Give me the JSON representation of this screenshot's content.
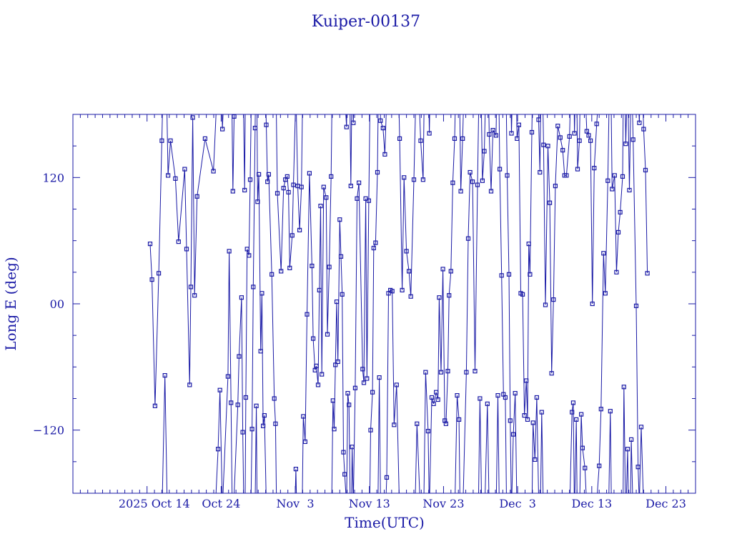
{
  "chart_data": {
    "type": "line",
    "title": "Kuiper-00137",
    "xlabel": "Time(UTC)",
    "ylabel": "Long E (deg)",
    "color": "#1a1aa6",
    "xlim": [
      "2025-10-04",
      "2025-12-27"
    ],
    "ylim": [
      -180,
      180
    ],
    "x_ticks": [
      {
        "date": "2025-10-14",
        "label": "2025 Oct 14"
      },
      {
        "date": "2025-10-24",
        "label": "Oct 24"
      },
      {
        "date": "2025-11-03",
        "label": "Nov  3"
      },
      {
        "date": "2025-11-13",
        "label": "Nov 13"
      },
      {
        "date": "2025-11-23",
        "label": "Nov 23"
      },
      {
        "date": "2025-12-03",
        "label": "Dec  3"
      },
      {
        "date": "2025-12-13",
        "label": "Dec 13"
      },
      {
        "date": "2025-12-23",
        "label": "Dec 23"
      }
    ],
    "y_ticks": [
      {
        "value": 120,
        "label": "120"
      },
      {
        "value": 0,
        "label": "00"
      },
      {
        "value": -120,
        "label": "−120"
      }
    ],
    "series": [
      {
        "values": [
          [
            "2025-10-14T10:00",
            57
          ],
          [
            "2025-10-14T16:00",
            23
          ],
          [
            "2025-10-15T02:00",
            -97
          ],
          [
            "2025-10-15T14:00",
            29
          ],
          [
            "2025-10-16T00:00",
            155
          ],
          [
            "2025-10-16T10:00",
            -68
          ],
          [
            "2025-10-16T20:00",
            122
          ],
          [
            "2025-10-17T04:00",
            155
          ],
          [
            "2025-10-17T20:00",
            119
          ],
          [
            "2025-10-18T06:00",
            59
          ],
          [
            "2025-10-19T02:00",
            128
          ],
          [
            "2025-10-19T08:00",
            52
          ],
          [
            "2025-10-19T18:00",
            -77
          ],
          [
            "2025-10-19T22:00",
            16
          ],
          [
            "2025-10-20T04:00",
            177
          ],
          [
            "2025-10-20T10:00",
            8
          ],
          [
            "2025-10-20T18:00",
            102
          ],
          [
            "2025-10-21T20:00",
            157
          ],
          [
            "2025-10-22T23:00",
            126
          ],
          [
            "2025-10-23T14:00",
            -138
          ],
          [
            "2025-10-23T20:00",
            -82
          ],
          [
            "2025-10-24T04:00",
            166
          ],
          [
            "2025-10-24T22:00",
            -69
          ],
          [
            "2025-10-25T02:00",
            50
          ],
          [
            "2025-10-25T08:00",
            -94
          ],
          [
            "2025-10-25T14:00",
            107
          ],
          [
            "2025-10-25T18:00",
            178
          ],
          [
            "2025-10-26T06:00",
            -96
          ],
          [
            "2025-10-26T10:00",
            -50
          ],
          [
            "2025-10-26T18:00",
            6
          ],
          [
            "2025-10-26T22:00",
            -122
          ],
          [
            "2025-10-27T04:00",
            108
          ],
          [
            "2025-10-27T08:00",
            -89
          ],
          [
            "2025-10-27T12:00",
            52
          ],
          [
            "2025-10-27T18:00",
            46
          ],
          [
            "2025-10-27T22:00",
            118
          ],
          [
            "2025-10-28T04:00",
            -119
          ],
          [
            "2025-10-28T08:00",
            16
          ],
          [
            "2025-10-28T14:00",
            167
          ],
          [
            "2025-10-28T18:00",
            -97
          ],
          [
            "2025-10-28T22:00",
            97
          ],
          [
            "2025-10-29T02:00",
            123
          ],
          [
            "2025-10-29T08:00",
            -45
          ],
          [
            "2025-10-29T12:00",
            10
          ],
          [
            "2025-10-29T16:00",
            -116
          ],
          [
            "2025-10-29T20:00",
            -106
          ],
          [
            "2025-10-30T02:00",
            170
          ],
          [
            "2025-10-30T06:00",
            116
          ],
          [
            "2025-10-30T10:00",
            123
          ],
          [
            "2025-10-30T20:00",
            28
          ],
          [
            "2025-10-31T04:00",
            -90
          ],
          [
            "2025-10-31T08:00",
            -114
          ],
          [
            "2025-10-31T14:00",
            105
          ],
          [
            "2025-11-01T02:00",
            31
          ],
          [
            "2025-11-01T10:00",
            110
          ],
          [
            "2025-11-01T16:00",
            118
          ],
          [
            "2025-11-01T22:00",
            121
          ],
          [
            "2025-11-02T02:00",
            106
          ],
          [
            "2025-11-02T06:00",
            34
          ],
          [
            "2025-11-02T14:00",
            65
          ],
          [
            "2025-11-02T18:00",
            113
          ],
          [
            "2025-11-03T02:00",
            -157
          ],
          [
            "2025-11-03T08:00",
            112
          ],
          [
            "2025-11-03T14:00",
            70
          ],
          [
            "2025-11-03T20:00",
            111
          ],
          [
            "2025-11-04T02:00",
            -107
          ],
          [
            "2025-11-04T08:00",
            -131
          ],
          [
            "2025-11-04T14:00",
            -10
          ],
          [
            "2025-11-04T22:00",
            124
          ],
          [
            "2025-11-05T06:00",
            36
          ],
          [
            "2025-11-05T10:00",
            -33
          ],
          [
            "2025-11-05T16:00",
            -63
          ],
          [
            "2025-11-05T20:00",
            -59
          ],
          [
            "2025-11-06T02:00",
            -77
          ],
          [
            "2025-11-06T06:00",
            13
          ],
          [
            "2025-11-06T10:00",
            93
          ],
          [
            "2025-11-06T14:00",
            -67
          ],
          [
            "2025-11-06T20:00",
            111
          ],
          [
            "2025-11-07T04:00",
            101
          ],
          [
            "2025-11-07T08:00",
            -29
          ],
          [
            "2025-11-07T14:00",
            35
          ],
          [
            "2025-11-07T20:00",
            121
          ],
          [
            "2025-11-08T02:00",
            -92
          ],
          [
            "2025-11-08T06:00",
            -119
          ],
          [
            "2025-11-08T10:00",
            -58
          ],
          [
            "2025-11-08T14:00",
            2
          ],
          [
            "2025-11-08T18:00",
            -55
          ],
          [
            "2025-11-09T00:00",
            80
          ],
          [
            "2025-11-09T04:00",
            45
          ],
          [
            "2025-11-09T08:00",
            9
          ],
          [
            "2025-11-09T12:00",
            -141
          ],
          [
            "2025-11-09T16:00",
            -162
          ],
          [
            "2025-11-09T22:00",
            168
          ],
          [
            "2025-11-10T02:00",
            -85
          ],
          [
            "2025-11-10T06:00",
            -96
          ],
          [
            "2025-11-10T12:00",
            112
          ],
          [
            "2025-11-10T16:00",
            -136
          ],
          [
            "2025-11-10T20:00",
            172
          ],
          [
            "2025-11-11T02:00",
            -80
          ],
          [
            "2025-11-11T08:00",
            100
          ],
          [
            "2025-11-11T14:00",
            115
          ],
          [
            "2025-11-12T02:00",
            -62
          ],
          [
            "2025-11-12T06:00",
            -75
          ],
          [
            "2025-11-12T12:00",
            100
          ],
          [
            "2025-11-12T16:00",
            -71
          ],
          [
            "2025-11-12T22:00",
            98
          ],
          [
            "2025-11-13T04:00",
            -120
          ],
          [
            "2025-11-13T10:00",
            -84
          ],
          [
            "2025-11-13T14:00",
            53
          ],
          [
            "2025-11-13T20:00",
            58
          ],
          [
            "2025-11-14T02:00",
            125
          ],
          [
            "2025-11-14T08:00",
            -70
          ],
          [
            "2025-11-14T12:00",
            174
          ],
          [
            "2025-11-14T20:00",
            167
          ],
          [
            "2025-11-15T02:00",
            142
          ],
          [
            "2025-11-15T08:00",
            -165
          ],
          [
            "2025-11-15T14:00",
            10
          ],
          [
            "2025-11-15T20:00",
            13
          ],
          [
            "2025-11-16T02:00",
            12
          ],
          [
            "2025-11-16T08:00",
            -115
          ],
          [
            "2025-11-16T16:00",
            -77
          ],
          [
            "2025-11-17T02:00",
            157
          ],
          [
            "2025-11-17T10:00",
            13
          ],
          [
            "2025-11-17T16:00",
            120
          ],
          [
            "2025-11-18T00:00",
            50
          ],
          [
            "2025-11-18T08:00",
            31
          ],
          [
            "2025-11-18T14:00",
            7
          ],
          [
            "2025-11-19T00:00",
            118
          ],
          [
            "2025-11-19T10:00",
            -114
          ],
          [
            "2025-11-19T22:00",
            155
          ],
          [
            "2025-11-20T06:00",
            118
          ],
          [
            "2025-11-20T14:00",
            -65
          ],
          [
            "2025-11-20T22:00",
            -121
          ],
          [
            "2025-11-21T02:00",
            162
          ],
          [
            "2025-11-21T10:00",
            -89
          ],
          [
            "2025-11-21T16:00",
            -95
          ],
          [
            "2025-11-22T00:00",
            -84
          ],
          [
            "2025-11-22T06:00",
            -91
          ],
          [
            "2025-11-22T10:00",
            6
          ],
          [
            "2025-11-22T16:00",
            -65
          ],
          [
            "2025-11-22T22:00",
            33
          ],
          [
            "2025-11-23T04:00",
            -111
          ],
          [
            "2025-11-23T08:00",
            -114
          ],
          [
            "2025-11-23T14:00",
            -64
          ],
          [
            "2025-11-23T18:00",
            8
          ],
          [
            "2025-11-24T00:00",
            31
          ],
          [
            "2025-11-24T06:00",
            115
          ],
          [
            "2025-11-24T12:00",
            157
          ],
          [
            "2025-11-24T20:00",
            -87
          ],
          [
            "2025-11-25T02:00",
            -110
          ],
          [
            "2025-11-25T08:00",
            107
          ],
          [
            "2025-11-25T14:00",
            157
          ],
          [
            "2025-11-26T02:00",
            -65
          ],
          [
            "2025-11-26T08:00",
            62
          ],
          [
            "2025-11-26T14:00",
            125
          ],
          [
            "2025-11-26T22:00",
            116
          ],
          [
            "2025-11-27T06:00",
            -64
          ],
          [
            "2025-11-27T14:00",
            113
          ],
          [
            "2025-11-27T22:00",
            -90
          ],
          [
            "2025-11-28T06:00",
            117
          ],
          [
            "2025-11-28T12:00",
            145
          ],
          [
            "2025-11-28T22:00",
            -95
          ],
          [
            "2025-11-29T04:00",
            161
          ],
          [
            "2025-11-29T10:00",
            107
          ],
          [
            "2025-11-29T16:00",
            165
          ],
          [
            "2025-11-30T02:00",
            160
          ],
          [
            "2025-11-30T08:00",
            -87
          ],
          [
            "2025-11-30T14:00",
            128
          ],
          [
            "2025-11-30T20:00",
            27
          ],
          [
            "2025-12-01T02:00",
            -86
          ],
          [
            "2025-12-01T08:00",
            -89
          ],
          [
            "2025-12-01T14:00",
            122
          ],
          [
            "2025-12-01T20:00",
            28
          ],
          [
            "2025-12-02T00:00",
            -111
          ],
          [
            "2025-12-02T04:00",
            162
          ],
          [
            "2025-12-02T10:00",
            -124
          ],
          [
            "2025-12-02T16:00",
            -85
          ],
          [
            "2025-12-02T22:00",
            157
          ],
          [
            "2025-12-03T04:00",
            170
          ],
          [
            "2025-12-03T10:00",
            10
          ],
          [
            "2025-12-03T16:00",
            9
          ],
          [
            "2025-12-03T22:00",
            -106
          ],
          [
            "2025-12-04T04:00",
            -73
          ],
          [
            "2025-12-04T08:00",
            -110
          ],
          [
            "2025-12-04T12:00",
            57
          ],
          [
            "2025-12-04T16:00",
            28
          ],
          [
            "2025-12-04T22:00",
            163
          ],
          [
            "2025-12-05T02:00",
            -113
          ],
          [
            "2025-12-05T08:00",
            -148
          ],
          [
            "2025-12-05T14:00",
            -89
          ],
          [
            "2025-12-05T20:00",
            175
          ],
          [
            "2025-12-06T00:00",
            125
          ],
          [
            "2025-12-06T06:00",
            -103
          ],
          [
            "2025-12-06T12:00",
            151
          ],
          [
            "2025-12-06T18:00",
            -1
          ],
          [
            "2025-12-07T02:00",
            150
          ],
          [
            "2025-12-07T08:00",
            96
          ],
          [
            "2025-12-07T14:00",
            -66
          ],
          [
            "2025-12-07T20:00",
            4
          ],
          [
            "2025-12-08T02:00",
            112
          ],
          [
            "2025-12-08T10:00",
            169
          ],
          [
            "2025-12-08T18:00",
            158
          ],
          [
            "2025-12-09T02:00",
            146
          ],
          [
            "2025-12-09T08:00",
            122
          ],
          [
            "2025-12-09T14:00",
            122
          ],
          [
            "2025-12-10T00:00",
            159
          ],
          [
            "2025-12-10T08:00",
            -103
          ],
          [
            "2025-12-10T12:00",
            -94
          ],
          [
            "2025-12-10T16:00",
            162
          ],
          [
            "2025-12-10T22:00",
            -110
          ],
          [
            "2025-12-11T02:00",
            128
          ],
          [
            "2025-12-11T08:00",
            155
          ],
          [
            "2025-12-11T14:00",
            -105
          ],
          [
            "2025-12-11T18:00",
            -137
          ],
          [
            "2025-12-12T02:00",
            -156
          ],
          [
            "2025-12-12T08:00",
            164
          ],
          [
            "2025-12-12T14:00",
            160
          ],
          [
            "2025-12-12T20:00",
            155
          ],
          [
            "2025-12-13T02:00",
            0
          ],
          [
            "2025-12-13T08:00",
            129
          ],
          [
            "2025-12-13T16:00",
            171
          ],
          [
            "2025-12-14T00:00",
            -154
          ],
          [
            "2025-12-14T06:00",
            -100
          ],
          [
            "2025-12-14T14:00",
            48
          ],
          [
            "2025-12-14T20:00",
            10
          ],
          [
            "2025-12-15T04:00",
            117
          ],
          [
            "2025-12-15T12:00",
            -102
          ],
          [
            "2025-12-15T18:00",
            109
          ],
          [
            "2025-12-16T02:00",
            122
          ],
          [
            "2025-12-16T08:00",
            30
          ],
          [
            "2025-12-16T14:00",
            68
          ],
          [
            "2025-12-16T20:00",
            87
          ],
          [
            "2025-12-17T04:00",
            121
          ],
          [
            "2025-12-17T08:00",
            -79
          ],
          [
            "2025-12-17T14:00",
            152
          ],
          [
            "2025-12-17T20:00",
            -138
          ],
          [
            "2025-12-18T02:00",
            108
          ],
          [
            "2025-12-18T08:00",
            -129
          ],
          [
            "2025-12-18T14:00",
            156
          ],
          [
            "2025-12-19T00:00",
            -2
          ],
          [
            "2025-12-19T06:00",
            -155
          ],
          [
            "2025-12-19T10:00",
            172
          ],
          [
            "2025-12-19T16:00",
            -117
          ],
          [
            "2025-12-20T00:00",
            166
          ],
          [
            "2025-12-20T06:00",
            127
          ],
          [
            "2025-12-20T12:00",
            29
          ]
        ]
      }
    ]
  }
}
